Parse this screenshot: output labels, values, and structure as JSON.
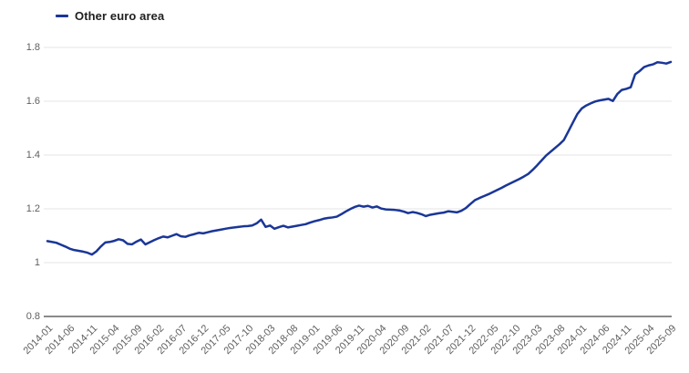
{
  "legend": {
    "label": "Other euro area"
  },
  "colors": {
    "line": "#1a3697",
    "grid": "#e5e5e5",
    "axis": "#8a8a8a",
    "tick_text": "#5f5f5f",
    "legend_text": "#1f1f1f",
    "background": "#ffffff"
  },
  "chart_data": {
    "type": "line",
    "title": "",
    "legend_position": "top-left",
    "grid": "horizontal-only",
    "ylim": [
      0.8,
      1.8
    ],
    "y_tick_values": [
      0.8,
      1.0,
      1.2,
      1.4,
      1.6,
      1.8
    ],
    "y_tick_labels": [
      "0.8",
      "1",
      "1.2",
      "1.4",
      "1.6",
      "1.8"
    ],
    "x_start": "2014-01",
    "x_end": "2025-09",
    "x_frequency": "monthly",
    "x_tick_every_n_months": 5,
    "x_tick_labels": [
      "2014-01",
      "2014-06",
      "2014-11",
      "2015-04",
      "2015-09",
      "2016-02",
      "2016-07",
      "2016-12",
      "2017-05",
      "2017-10",
      "2018-03",
      "2018-08",
      "2019-01",
      "2019-06",
      "2019-11",
      "2020-04",
      "2020-09",
      "2021-02",
      "2021-07",
      "2021-12",
      "2022-05",
      "2022-10",
      "2023-03",
      "2023-08",
      "2024-01",
      "2024-06",
      "2024-11",
      "2025-04",
      "2025-09"
    ],
    "series": [
      {
        "name": "Other euro area",
        "color": "#1a3697",
        "values": [
          1.08,
          1.077,
          1.074,
          1.067,
          1.06,
          1.052,
          1.047,
          1.044,
          1.041,
          1.037,
          1.03,
          1.042,
          1.06,
          1.075,
          1.077,
          1.081,
          1.087,
          1.083,
          1.07,
          1.068,
          1.078,
          1.086,
          1.068,
          1.076,
          1.084,
          1.091,
          1.097,
          1.094,
          1.1,
          1.106,
          1.098,
          1.096,
          1.102,
          1.106,
          1.111,
          1.109,
          1.113,
          1.117,
          1.12,
          1.123,
          1.126,
          1.129,
          1.131,
          1.133,
          1.135,
          1.136,
          1.138,
          1.146,
          1.16,
          1.133,
          1.138,
          1.126,
          1.132,
          1.137,
          1.131,
          1.134,
          1.137,
          1.14,
          1.143,
          1.149,
          1.154,
          1.158,
          1.163,
          1.166,
          1.168,
          1.171,
          1.18,
          1.19,
          1.199,
          1.207,
          1.212,
          1.208,
          1.211,
          1.205,
          1.209,
          1.201,
          1.198,
          1.197,
          1.196,
          1.194,
          1.19,
          1.184,
          1.188,
          1.185,
          1.18,
          1.173,
          1.178,
          1.181,
          1.184,
          1.186,
          1.191,
          1.189,
          1.187,
          1.193,
          1.203,
          1.218,
          1.232,
          1.24,
          1.247,
          1.254,
          1.262,
          1.27,
          1.278,
          1.287,
          1.295,
          1.303,
          1.311,
          1.32,
          1.33,
          1.345,
          1.362,
          1.38,
          1.398,
          1.412,
          1.426,
          1.44,
          1.456,
          1.488,
          1.52,
          1.552,
          1.573,
          1.584,
          1.592,
          1.599,
          1.603,
          1.606,
          1.609,
          1.601,
          1.627,
          1.642,
          1.646,
          1.652,
          1.7,
          1.712,
          1.727,
          1.733,
          1.737,
          1.745,
          1.743,
          1.74,
          1.746
        ]
      }
    ]
  }
}
